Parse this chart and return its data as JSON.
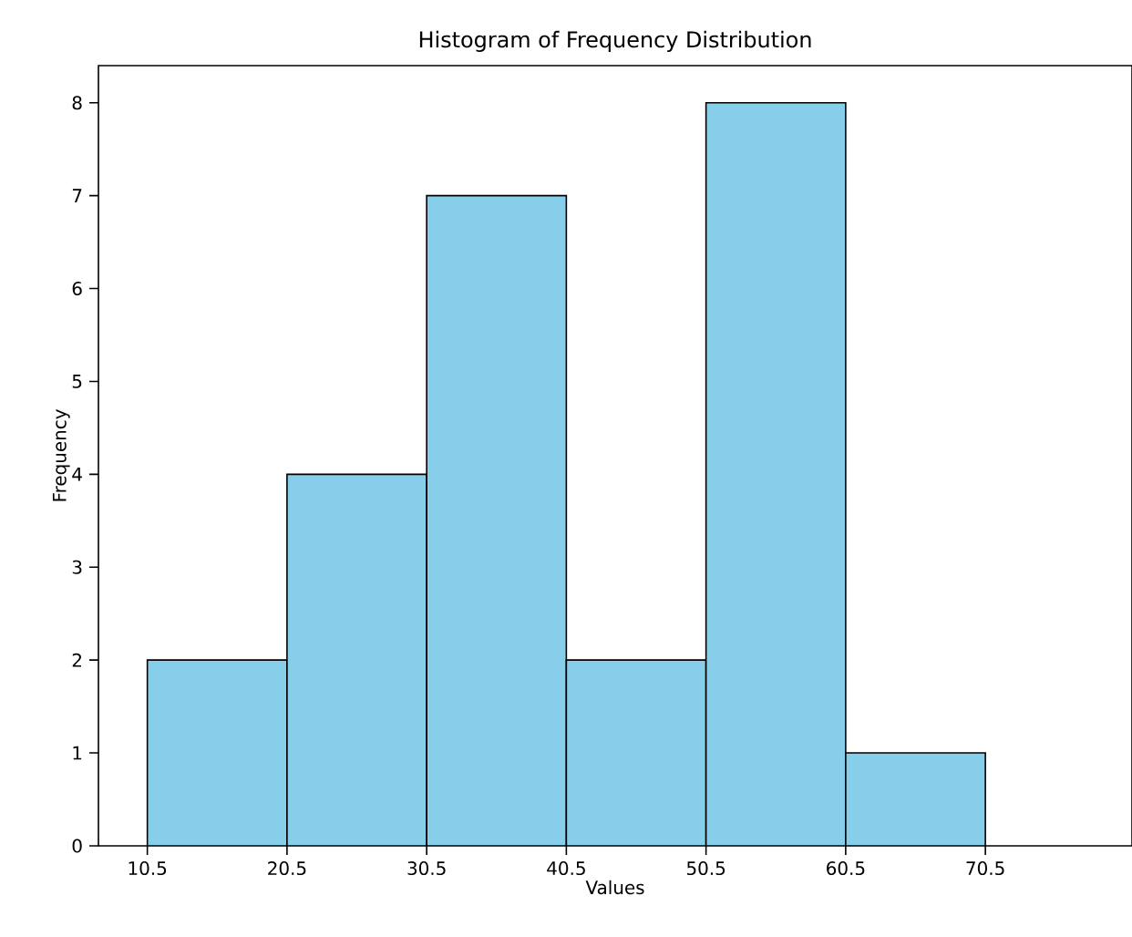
{
  "chart_data": {
    "type": "histogram",
    "title": "Histogram of Frequency Distribution",
    "xlabel": "Values",
    "ylabel": "Frequency",
    "bins": [
      10.5,
      20.5,
      30.5,
      40.5,
      50.5,
      60.5,
      70.5
    ],
    "values": [
      2,
      4,
      7,
      2,
      8,
      1
    ],
    "color": "#87ceeb",
    "xlim": [
      7,
      81
    ],
    "ylim": [
      0,
      8.4
    ],
    "xticks": [
      10.5,
      20.5,
      30.5,
      40.5,
      50.5,
      60.5,
      70.5
    ],
    "yticks": [
      0,
      1,
      2,
      3,
      4,
      5,
      6,
      7,
      8
    ],
    "grid": false
  }
}
